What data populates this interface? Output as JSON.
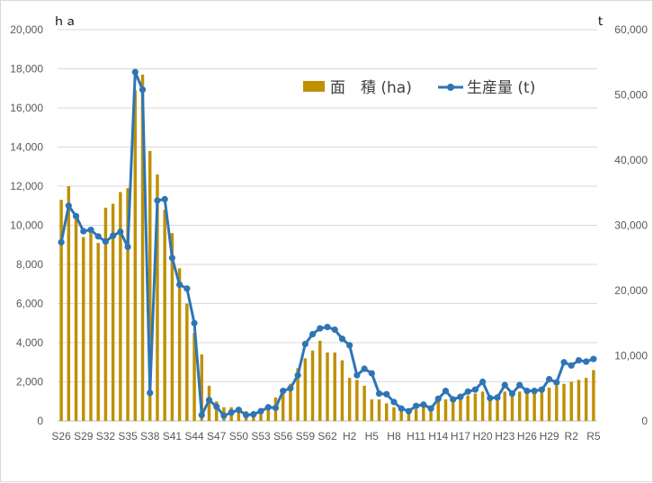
{
  "chart_data": {
    "type": "bar+line",
    "title": "",
    "y_left_unit": "ｈａ",
    "y_right_unit": "t",
    "y_left_ticks": [
      "0",
      "2,000",
      "4,000",
      "6,000",
      "8,000",
      "10,000",
      "12,000",
      "14,000",
      "16,000",
      "18,000",
      "20,000"
    ],
    "y_right_ticks": [
      "0",
      "10,000",
      "20,000",
      "30,000",
      "40,000",
      "50,000",
      "60,000"
    ],
    "ylim_left": [
      0,
      20000
    ],
    "ylim_right": [
      0,
      60000
    ],
    "x_tick_labels": [
      "S26",
      "S29",
      "S32",
      "S35",
      "S38",
      "S41",
      "S44",
      "S47",
      "S50",
      "S53",
      "S56",
      "S59",
      "S62",
      "H2",
      "H5",
      "H8",
      "H11",
      "H14",
      "H17",
      "H20",
      "H23",
      "H26",
      "H29",
      "R2",
      "R5"
    ],
    "categories": [
      "S26",
      "S27",
      "S28",
      "S29",
      "S30",
      "S31",
      "S32",
      "S33",
      "S34",
      "S35",
      "S36",
      "S37",
      "S38",
      "S39",
      "S40",
      "S41",
      "S42",
      "S43",
      "S44",
      "S45",
      "S46",
      "S47",
      "S48",
      "S49",
      "S50",
      "S51",
      "S52",
      "S53",
      "S54",
      "S55",
      "S56",
      "S57",
      "S58",
      "S59",
      "S60",
      "S61",
      "S62",
      "S63",
      "H1",
      "H2",
      "H3",
      "H4",
      "H5",
      "H6",
      "H7",
      "H8",
      "H9",
      "H10",
      "H11",
      "H12",
      "H13",
      "H14",
      "H15",
      "H16",
      "H17",
      "H18",
      "H19",
      "H20",
      "H21",
      "H22",
      "H23",
      "H24",
      "H25",
      "H26",
      "H27",
      "H28",
      "H29",
      "H30",
      "R1",
      "R2",
      "R3",
      "R4",
      "R5"
    ],
    "legend_position": "top-right",
    "series": [
      {
        "name": "面　積 (ha)",
        "type": "bar",
        "axis": "left",
        "color": "#bf9000",
        "values": [
          11300,
          12000,
          10300,
          9400,
          9600,
          9100,
          10900,
          11100,
          11700,
          11900,
          16900,
          17700,
          13800,
          12600,
          10800,
          9600,
          7800,
          6000,
          4500,
          3400,
          1800,
          1000,
          700,
          700,
          600,
          500,
          500,
          600,
          800,
          1200,
          1400,
          1900,
          2700,
          3200,
          3600,
          4100,
          3500,
          3500,
          3100,
          2200,
          2100,
          1800,
          1100,
          1100,
          900,
          700,
          500,
          600,
          600,
          700,
          800,
          1000,
          1100,
          1100,
          1200,
          1300,
          1400,
          1500,
          1300,
          1300,
          1500,
          1400,
          1500,
          1500,
          1500,
          1600,
          1700,
          1800,
          1900,
          2000,
          2100,
          2200,
          2600
        ]
      },
      {
        "name": "生産量 (t)",
        "type": "line",
        "axis": "right",
        "color": "#2e75b6",
        "values": [
          27400,
          33000,
          31400,
          29100,
          29300,
          28300,
          27500,
          28400,
          29000,
          26700,
          53500,
          50800,
          4300,
          33800,
          34000,
          25000,
          20900,
          20300,
          15000,
          900,
          3200,
          2200,
          800,
          1300,
          1700,
          900,
          1000,
          1500,
          2100,
          2000,
          4600,
          5000,
          7000,
          11800,
          13300,
          14200,
          14400,
          14000,
          12600,
          11600,
          7000,
          8000,
          7300,
          4200,
          4100,
          2900,
          1900,
          1500,
          2300,
          2500,
          1900,
          3400,
          4600,
          3300,
          3700,
          4500,
          4800,
          6000,
          3500,
          3600,
          5500,
          4200,
          5500,
          4600,
          4600,
          4800,
          6400,
          5900,
          9000,
          8500,
          9300,
          9100,
          9500
        ]
      }
    ]
  }
}
